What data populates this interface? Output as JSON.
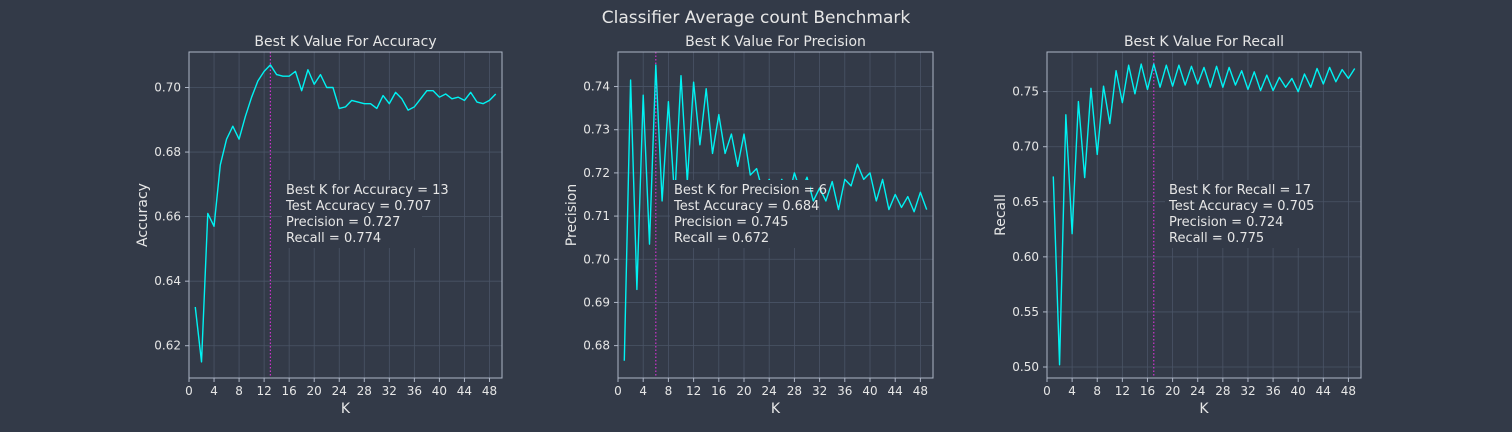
{
  "figure": {
    "suptitle": "Classifier Average count Benchmark"
  },
  "style": {
    "background": "#333a48",
    "line_color": "#00f2f2",
    "marker_color": "#cc33cc",
    "grid_color": "#4a5466",
    "spine_color": "#aeb6c6",
    "text_color": "#e6e6e6"
  },
  "chart_data": [
    {
      "type": "line",
      "title": "Best K Value For Accuracy",
      "xlabel": "K",
      "ylabel": "Accuracy",
      "xlim": [
        0,
        50
      ],
      "ylim": [
        0.61,
        0.711
      ],
      "xticks": [
        0,
        4,
        8,
        12,
        16,
        20,
        24,
        28,
        32,
        36,
        40,
        44,
        48
      ],
      "yticks": [
        0.62,
        0.64,
        0.66,
        0.68,
        0.7
      ],
      "ytick_labels": [
        "0.62",
        "0.64",
        "0.66",
        "0.68",
        "0.70"
      ],
      "grid": true,
      "best_k": 13,
      "annotation": [
        "Best K for Accuracy = 13",
        "Test Accuracy = 0.707",
        "Precision = 0.727",
        "Recall = 0.774"
      ],
      "series": [
        {
          "x": [
            1,
            2,
            3,
            4,
            5,
            6,
            7,
            8,
            9,
            10,
            11,
            12,
            13,
            14,
            15,
            16,
            17,
            18,
            19,
            20,
            21,
            22,
            23,
            24,
            25,
            26,
            27,
            28,
            29,
            30,
            31,
            32,
            33,
            34,
            35,
            36,
            37,
            38,
            39,
            40,
            41,
            42,
            43,
            44,
            45,
            46,
            47,
            48,
            49
          ],
          "values": [
            0.632,
            0.615,
            0.661,
            0.657,
            0.676,
            0.684,
            0.688,
            0.684,
            0.691,
            0.697,
            0.702,
            0.705,
            0.707,
            0.704,
            0.7035,
            0.7035,
            0.705,
            0.699,
            0.7055,
            0.701,
            0.704,
            0.7,
            0.7,
            0.6935,
            0.694,
            0.696,
            0.6955,
            0.695,
            0.695,
            0.6935,
            0.6975,
            0.695,
            0.6985,
            0.6965,
            0.693,
            0.694,
            0.6965,
            0.699,
            0.699,
            0.697,
            0.698,
            0.6965,
            0.697,
            0.696,
            0.6985,
            0.6955,
            0.695,
            0.696,
            0.698
          ]
        }
      ]
    },
    {
      "type": "line",
      "title": "Best K Value For Precision",
      "xlabel": "K",
      "ylabel": "Precision",
      "xlim": [
        0,
        50
      ],
      "ylim": [
        0.6725,
        0.748
      ],
      "xticks": [
        0,
        4,
        8,
        12,
        16,
        20,
        24,
        28,
        32,
        36,
        40,
        44,
        48
      ],
      "yticks": [
        0.68,
        0.69,
        0.7,
        0.71,
        0.72,
        0.73,
        0.74
      ],
      "ytick_labels": [
        "0.68",
        "0.69",
        "0.70",
        "0.71",
        "0.72",
        "0.73",
        "0.74"
      ],
      "grid": true,
      "best_k": 6,
      "annotation": [
        "Best K for Precision = 6",
        "Test Accuracy = 0.684",
        "Precision = 0.745",
        "Recall = 0.672"
      ],
      "series": [
        {
          "x": [
            1,
            2,
            3,
            4,
            5,
            6,
            7,
            8,
            9,
            10,
            11,
            12,
            13,
            14,
            15,
            16,
            17,
            18,
            19,
            20,
            21,
            22,
            23,
            24,
            25,
            26,
            27,
            28,
            29,
            30,
            31,
            32,
            33,
            34,
            35,
            36,
            37,
            38,
            39,
            40,
            41,
            42,
            43,
            44,
            45,
            46,
            47,
            48,
            49
          ],
          "values": [
            0.6765,
            0.7415,
            0.693,
            0.738,
            0.7035,
            0.745,
            0.7135,
            0.7365,
            0.714,
            0.7425,
            0.718,
            0.741,
            0.7265,
            0.7395,
            0.7245,
            0.7335,
            0.7245,
            0.729,
            0.7215,
            0.729,
            0.7195,
            0.721,
            0.7155,
            0.7185,
            0.7155,
            0.7185,
            0.714,
            0.72,
            0.7155,
            0.719,
            0.7135,
            0.7165,
            0.7135,
            0.718,
            0.7115,
            0.7185,
            0.717,
            0.722,
            0.7185,
            0.72,
            0.7135,
            0.7185,
            0.7115,
            0.715,
            0.712,
            0.7145,
            0.711,
            0.7155,
            0.7115
          ]
        }
      ]
    },
    {
      "type": "line",
      "title": "Best K Value For Recall",
      "xlabel": "K",
      "ylabel": "Recall",
      "xlim": [
        0,
        50
      ],
      "ylim": [
        0.49,
        0.786
      ],
      "xticks": [
        0,
        4,
        8,
        12,
        16,
        20,
        24,
        28,
        32,
        36,
        40,
        44,
        48
      ],
      "yticks": [
        0.5,
        0.55,
        0.6,
        0.65,
        0.7,
        0.75
      ],
      "ytick_labels": [
        "0.50",
        "0.55",
        "0.60",
        "0.65",
        "0.70",
        "0.75"
      ],
      "grid": true,
      "best_k": 17,
      "annotation": [
        "Best K for Recall = 17",
        "Test Accuracy = 0.705",
        "Precision = 0.724",
        "Recall = 0.775"
      ],
      "series": [
        {
          "x": [
            1,
            2,
            3,
            4,
            5,
            6,
            7,
            8,
            9,
            10,
            11,
            12,
            13,
            14,
            15,
            16,
            17,
            18,
            19,
            20,
            21,
            22,
            23,
            24,
            25,
            26,
            27,
            28,
            29,
            30,
            31,
            32,
            33,
            34,
            35,
            36,
            37,
            38,
            39,
            40,
            41,
            42,
            43,
            44,
            45,
            46,
            47,
            48,
            49
          ],
          "values": [
            0.673,
            0.502,
            0.729,
            0.621,
            0.741,
            0.672,
            0.753,
            0.693,
            0.755,
            0.721,
            0.769,
            0.74,
            0.774,
            0.748,
            0.775,
            0.752,
            0.775,
            0.754,
            0.774,
            0.755,
            0.774,
            0.756,
            0.773,
            0.757,
            0.772,
            0.754,
            0.773,
            0.754,
            0.772,
            0.756,
            0.769,
            0.752,
            0.768,
            0.751,
            0.765,
            0.751,
            0.763,
            0.754,
            0.762,
            0.75,
            0.766,
            0.754,
            0.771,
            0.757,
            0.772,
            0.759,
            0.77,
            0.762,
            0.771
          ]
        }
      ]
    }
  ]
}
